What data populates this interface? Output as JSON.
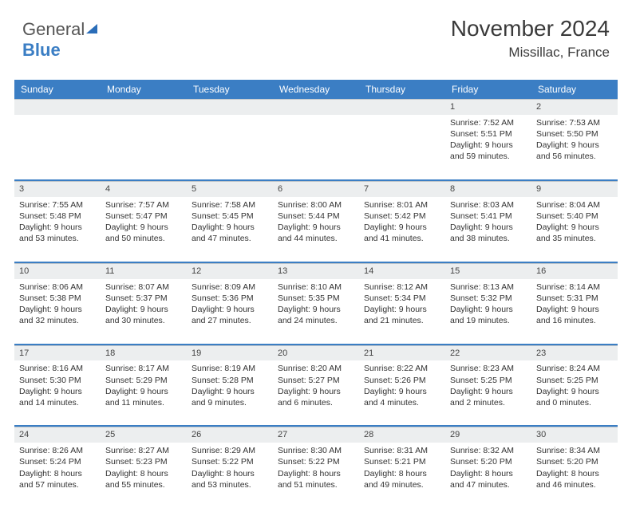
{
  "logo": {
    "part1": "General",
    "part2": "Blue"
  },
  "header": {
    "month_title": "November 2024",
    "location": "Missillac, France"
  },
  "calendar": {
    "type": "table",
    "background_color": "#ffffff",
    "header_bg": "#3b7ec4",
    "header_text_color": "#ffffff",
    "daynum_bg": "#eceeef",
    "separator_color": "#3b7ec4",
    "body_text_color": "#333333",
    "body_fontsize": 10.5,
    "header_fontsize": 12,
    "daynum_fontsize": 11,
    "columns": [
      "Sunday",
      "Monday",
      "Tuesday",
      "Wednesday",
      "Thursday",
      "Friday",
      "Saturday"
    ],
    "weeks": [
      [
        null,
        null,
        null,
        null,
        null,
        {
          "n": "1",
          "sunrise": "7:52 AM",
          "sunset": "5:51 PM",
          "day_h": 9,
          "day_m": 59
        },
        {
          "n": "2",
          "sunrise": "7:53 AM",
          "sunset": "5:50 PM",
          "day_h": 9,
          "day_m": 56
        }
      ],
      [
        {
          "n": "3",
          "sunrise": "7:55 AM",
          "sunset": "5:48 PM",
          "day_h": 9,
          "day_m": 53
        },
        {
          "n": "4",
          "sunrise": "7:57 AM",
          "sunset": "5:47 PM",
          "day_h": 9,
          "day_m": 50
        },
        {
          "n": "5",
          "sunrise": "7:58 AM",
          "sunset": "5:45 PM",
          "day_h": 9,
          "day_m": 47
        },
        {
          "n": "6",
          "sunrise": "8:00 AM",
          "sunset": "5:44 PM",
          "day_h": 9,
          "day_m": 44
        },
        {
          "n": "7",
          "sunrise": "8:01 AM",
          "sunset": "5:42 PM",
          "day_h": 9,
          "day_m": 41
        },
        {
          "n": "8",
          "sunrise": "8:03 AM",
          "sunset": "5:41 PM",
          "day_h": 9,
          "day_m": 38
        },
        {
          "n": "9",
          "sunrise": "8:04 AM",
          "sunset": "5:40 PM",
          "day_h": 9,
          "day_m": 35
        }
      ],
      [
        {
          "n": "10",
          "sunrise": "8:06 AM",
          "sunset": "5:38 PM",
          "day_h": 9,
          "day_m": 32
        },
        {
          "n": "11",
          "sunrise": "8:07 AM",
          "sunset": "5:37 PM",
          "day_h": 9,
          "day_m": 30
        },
        {
          "n": "12",
          "sunrise": "8:09 AM",
          "sunset": "5:36 PM",
          "day_h": 9,
          "day_m": 27
        },
        {
          "n": "13",
          "sunrise": "8:10 AM",
          "sunset": "5:35 PM",
          "day_h": 9,
          "day_m": 24
        },
        {
          "n": "14",
          "sunrise": "8:12 AM",
          "sunset": "5:34 PM",
          "day_h": 9,
          "day_m": 21
        },
        {
          "n": "15",
          "sunrise": "8:13 AM",
          "sunset": "5:32 PM",
          "day_h": 9,
          "day_m": 19
        },
        {
          "n": "16",
          "sunrise": "8:14 AM",
          "sunset": "5:31 PM",
          "day_h": 9,
          "day_m": 16
        }
      ],
      [
        {
          "n": "17",
          "sunrise": "8:16 AM",
          "sunset": "5:30 PM",
          "day_h": 9,
          "day_m": 14
        },
        {
          "n": "18",
          "sunrise": "8:17 AM",
          "sunset": "5:29 PM",
          "day_h": 9,
          "day_m": 11
        },
        {
          "n": "19",
          "sunrise": "8:19 AM",
          "sunset": "5:28 PM",
          "day_h": 9,
          "day_m": 9
        },
        {
          "n": "20",
          "sunrise": "8:20 AM",
          "sunset": "5:27 PM",
          "day_h": 9,
          "day_m": 6
        },
        {
          "n": "21",
          "sunrise": "8:22 AM",
          "sunset": "5:26 PM",
          "day_h": 9,
          "day_m": 4
        },
        {
          "n": "22",
          "sunrise": "8:23 AM",
          "sunset": "5:25 PM",
          "day_h": 9,
          "day_m": 2
        },
        {
          "n": "23",
          "sunrise": "8:24 AM",
          "sunset": "5:25 PM",
          "day_h": 9,
          "day_m": 0
        }
      ],
      [
        {
          "n": "24",
          "sunrise": "8:26 AM",
          "sunset": "5:24 PM",
          "day_h": 8,
          "day_m": 57
        },
        {
          "n": "25",
          "sunrise": "8:27 AM",
          "sunset": "5:23 PM",
          "day_h": 8,
          "day_m": 55
        },
        {
          "n": "26",
          "sunrise": "8:29 AM",
          "sunset": "5:22 PM",
          "day_h": 8,
          "day_m": 53
        },
        {
          "n": "27",
          "sunrise": "8:30 AM",
          "sunset": "5:22 PM",
          "day_h": 8,
          "day_m": 51
        },
        {
          "n": "28",
          "sunrise": "8:31 AM",
          "sunset": "5:21 PM",
          "day_h": 8,
          "day_m": 49
        },
        {
          "n": "29",
          "sunrise": "8:32 AM",
          "sunset": "5:20 PM",
          "day_h": 8,
          "day_m": 47
        },
        {
          "n": "30",
          "sunrise": "8:34 AM",
          "sunset": "5:20 PM",
          "day_h": 8,
          "day_m": 46
        }
      ]
    ],
    "labels": {
      "sunrise": "Sunrise:",
      "sunset": "Sunset:",
      "daylight": "Daylight:",
      "hours": "hours",
      "and": "and",
      "minutes": "minutes."
    }
  }
}
